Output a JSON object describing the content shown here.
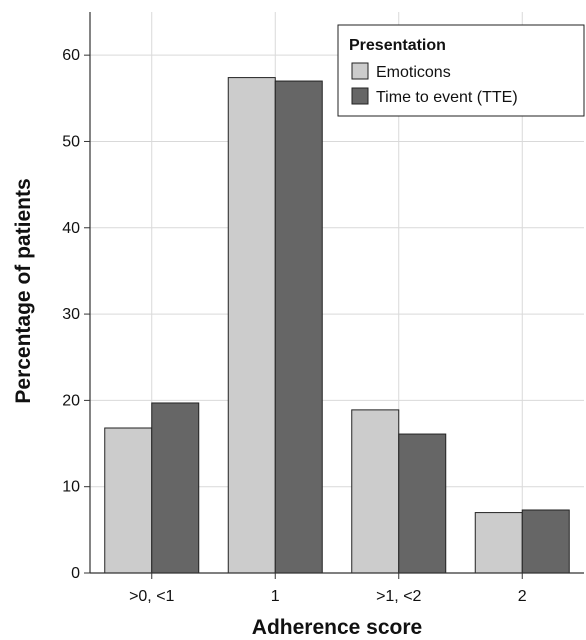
{
  "chart_data": {
    "type": "bar",
    "xlabel": "Adherence score",
    "ylabel": "Percentage of patients",
    "categories": [
      ">0, <1",
      "1",
      ">1, <2",
      "2"
    ],
    "series": [
      {
        "name": "Emoticons",
        "values": [
          16.8,
          57.4,
          18.9,
          7.0
        ],
        "color": "#cccccc"
      },
      {
        "name": "Time to event (TTE)",
        "values": [
          19.7,
          57.0,
          16.1,
          7.3
        ],
        "color": "#666666"
      }
    ],
    "ylim": [
      0,
      65
    ],
    "yticks": [
      "0",
      "10",
      "20",
      "30",
      "40",
      "50",
      "60"
    ],
    "grid": true,
    "legend": {
      "title": "Presentation",
      "position": "top-right"
    },
    "colors": {
      "grid": "#d9d9d9",
      "axis": "#333333",
      "bar_edge": "#222222"
    }
  }
}
